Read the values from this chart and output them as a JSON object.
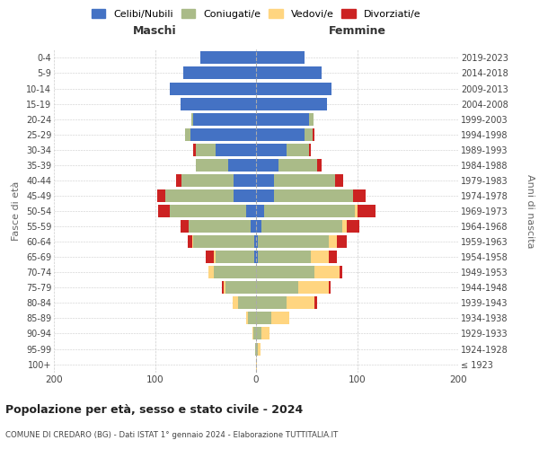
{
  "age_groups": [
    "100+",
    "95-99",
    "90-94",
    "85-89",
    "80-84",
    "75-79",
    "70-74",
    "65-69",
    "60-64",
    "55-59",
    "50-54",
    "45-49",
    "40-44",
    "35-39",
    "30-34",
    "25-29",
    "20-24",
    "15-19",
    "10-14",
    "5-9",
    "0-4"
  ],
  "birth_years": [
    "≤ 1923",
    "1924-1928",
    "1929-1933",
    "1934-1938",
    "1939-1943",
    "1944-1948",
    "1949-1953",
    "1954-1958",
    "1959-1963",
    "1964-1968",
    "1969-1973",
    "1974-1978",
    "1979-1983",
    "1984-1988",
    "1989-1993",
    "1994-1998",
    "1999-2003",
    "2004-2008",
    "2009-2013",
    "2014-2018",
    "2019-2023"
  ],
  "male": {
    "celibi": [
      0,
      0,
      0,
      0,
      0,
      0,
      0,
      2,
      2,
      5,
      10,
      22,
      22,
      28,
      40,
      65,
      62,
      75,
      85,
      72,
      55
    ],
    "coniugati": [
      0,
      1,
      3,
      8,
      18,
      30,
      42,
      38,
      60,
      62,
      75,
      68,
      52,
      32,
      20,
      5,
      2,
      0,
      0,
      0,
      0
    ],
    "vedovi": [
      0,
      0,
      1,
      2,
      5,
      2,
      5,
      2,
      1,
      0,
      0,
      0,
      0,
      0,
      0,
      0,
      0,
      0,
      0,
      0,
      0
    ],
    "divorziati": [
      0,
      0,
      0,
      0,
      0,
      2,
      0,
      8,
      5,
      8,
      12,
      8,
      5,
      0,
      2,
      0,
      0,
      0,
      0,
      0,
      0
    ]
  },
  "female": {
    "nubili": [
      0,
      0,
      0,
      0,
      0,
      0,
      0,
      2,
      2,
      5,
      8,
      18,
      18,
      22,
      30,
      48,
      52,
      70,
      75,
      65,
      48
    ],
    "coniugate": [
      0,
      2,
      5,
      15,
      30,
      42,
      58,
      52,
      70,
      80,
      90,
      78,
      60,
      38,
      22,
      8,
      5,
      0,
      0,
      0,
      0
    ],
    "vedove": [
      1,
      2,
      8,
      18,
      28,
      30,
      25,
      18,
      8,
      5,
      2,
      0,
      0,
      0,
      0,
      0,
      0,
      0,
      0,
      0,
      0
    ],
    "divorziate": [
      0,
      0,
      0,
      0,
      2,
      2,
      2,
      8,
      10,
      12,
      18,
      12,
      8,
      5,
      2,
      2,
      0,
      0,
      0,
      0,
      0
    ]
  },
  "colors": {
    "celibi": "#4472C4",
    "coniugati": "#AABB88",
    "vedovi": "#FFD580",
    "divorziati": "#CC2222"
  },
  "xlim": 200,
  "title": "Popolazione per età, sesso e stato civile - 2024",
  "subtitle": "COMUNE DI CREDARO (BG) - Dati ISTAT 1° gennaio 2024 - Elaborazione TUTTITALIA.IT",
  "ylabel_left": "Fasce di età",
  "ylabel_right": "Anni di nascita",
  "xlabel_left": "Maschi",
  "xlabel_right": "Femmine",
  "legend_labels": [
    "Celibi/Nubili",
    "Coniugati/e",
    "Vedovi/e",
    "Divorziati/e"
  ]
}
